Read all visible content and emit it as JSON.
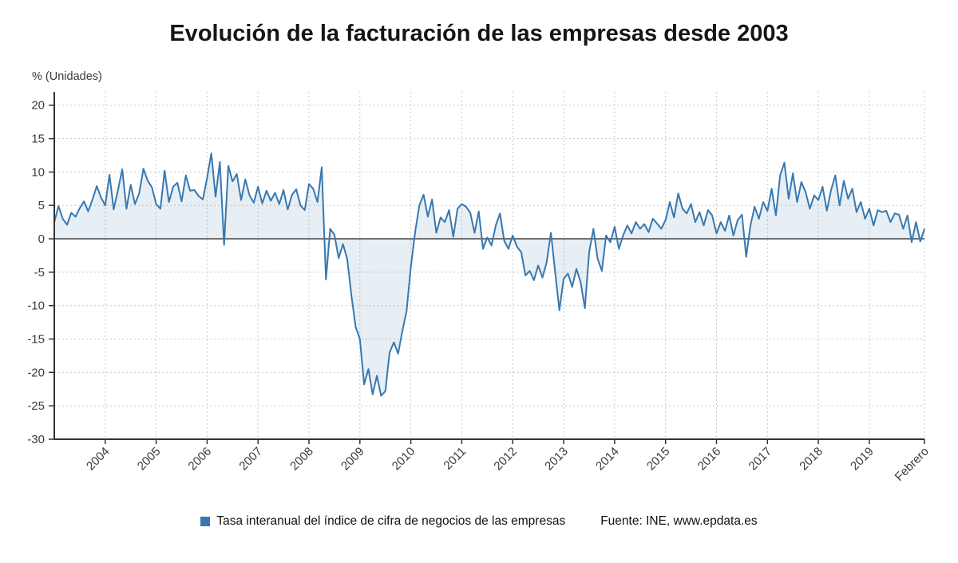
{
  "chart_data": {
    "type": "line",
    "title": "Evolución de la facturación de las empresas desde 2003",
    "ylabel": "% (Unidades)",
    "series_name": "Tasa interanual del índice de cifra de negocios de las empresas",
    "source": "Fuente: INE, www.epdata.es",
    "line_color": "#3878af",
    "area_color": "rgba(56,120,175,0.12)",
    "grid_color": "#c9c9c9",
    "axis_color": "#333333",
    "label_color": "#3a3a3a",
    "ylim": [
      -30,
      22
    ],
    "y_ticks": [
      20,
      15,
      10,
      5,
      0,
      -5,
      -10,
      -15,
      -20,
      -25,
      -30
    ],
    "x_tick_labels": [
      "2004",
      "2005",
      "2006",
      "2007",
      "2008",
      "2009",
      "2010",
      "2011",
      "2012",
      "2013",
      "2014",
      "2015",
      "2016",
      "2017",
      "2018",
      "2019",
      "Febrero"
    ],
    "x_tick_indices": [
      12,
      24,
      36,
      48,
      60,
      72,
      84,
      96,
      108,
      120,
      132,
      144,
      156,
      168,
      180,
      192,
      205
    ],
    "x_start_label": "2003-01",
    "x_end_label": "2020-02 (Febrero)",
    "values": [
      2.5,
      4.9,
      3.0,
      2.1,
      3.9,
      3.3,
      4.6,
      5.6,
      4.1,
      5.9,
      7.9,
      6.2,
      5.0,
      9.6,
      4.4,
      7.3,
      10.4,
      4.5,
      8.1,
      5.2,
      6.8,
      10.5,
      8.7,
      7.7,
      5.2,
      4.5,
      10.2,
      5.5,
      7.8,
      8.4,
      5.6,
      9.5,
      7.2,
      7.3,
      6.4,
      5.9,
      9.1,
      12.8,
      6.3,
      11.5,
      -0.9,
      10.9,
      8.6,
      9.7,
      5.8,
      8.9,
      6.5,
      5.4,
      7.8,
      5.3,
      7.2,
      5.7,
      6.9,
      5.2,
      7.3,
      4.4,
      6.6,
      7.4,
      5.0,
      4.3,
      8.2,
      7.5,
      5.5,
      10.7,
      -6.1,
      1.5,
      0.6,
      -2.9,
      -0.8,
      -3.0,
      -8.5,
      -13.2,
      -15.0,
      -21.8,
      -19.5,
      -23.3,
      -20.5,
      -23.5,
      -22.8,
      -17.0,
      -15.5,
      -17.2,
      -13.8,
      -10.8,
      -4.2,
      1.0,
      5.0,
      6.6,
      3.3,
      5.9,
      0.9,
      3.2,
      2.5,
      4.3,
      0.3,
      4.5,
      5.2,
      4.8,
      3.9,
      0.9,
      4.1,
      -1.5,
      0.2,
      -1.0,
      2.0,
      3.8,
      -0.3,
      -1.5,
      0.5,
      -1.2,
      -2.0,
      -5.5,
      -4.8,
      -6.2,
      -4.0,
      -5.8,
      -3.5,
      0.9,
      -5.0,
      -10.7,
      -6.0,
      -5.2,
      -7.2,
      -4.5,
      -6.5,
      -10.4,
      -2.0,
      1.5,
      -3.0,
      -4.8,
      0.5,
      -0.5,
      1.8,
      -1.5,
      0.5,
      2.0,
      0.8,
      2.5,
      1.5,
      2.2,
      1.0,
      3.0,
      2.3,
      1.5,
      2.8,
      5.5,
      3.2,
      6.8,
      4.5,
      3.8,
      5.2,
      2.5,
      4.0,
      2.0,
      4.3,
      3.5,
      0.8,
      2.5,
      1.2,
      3.5,
      0.5,
      2.8,
      3.6,
      -2.7,
      2.0,
      4.8,
      3.0,
      5.5,
      4.2,
      7.5,
      3.5,
      9.5,
      11.4,
      6.0,
      9.8,
      5.5,
      8.5,
      7.0,
      4.5,
      6.5,
      5.8,
      7.8,
      4.2,
      7.3,
      9.5,
      5.0,
      8.7,
      6.0,
      7.5,
      4.0,
      5.5,
      3.0,
      4.5,
      2.0,
      4.3,
      4.0,
      4.2,
      2.5,
      3.8,
      3.6,
      1.5,
      3.5,
      -0.5,
      2.5,
      -0.4,
      1.5
    ]
  }
}
